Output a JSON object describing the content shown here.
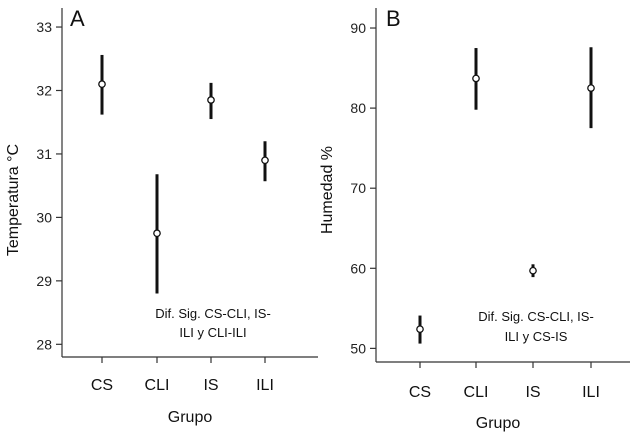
{
  "chart_data": [
    {
      "type": "scatter",
      "panel_label": "A",
      "xlabel": "Grupo",
      "ylabel": "Temperatura °C",
      "categories": [
        "CS",
        "CLI",
        "IS",
        "ILI"
      ],
      "values": [
        32.1,
        29.75,
        31.85,
        30.9
      ],
      "error_low": [
        31.62,
        28.8,
        31.55,
        30.57
      ],
      "error_high": [
        32.56,
        30.68,
        32.12,
        31.2
      ],
      "ylim": [
        27.8,
        33.3
      ],
      "yticks": [
        "28",
        "29",
        "30",
        "31",
        "32",
        "33"
      ],
      "ytick_values": [
        28,
        29,
        30,
        31,
        32,
        33
      ],
      "annotation": [
        "Dif. Sig. CS-CLI, IS-",
        "ILI y CLI-ILI"
      ],
      "grid": false,
      "legend": "none"
    },
    {
      "type": "scatter",
      "panel_label": "B",
      "xlabel": "Grupo",
      "ylabel": "Humedad %",
      "categories": [
        "CS",
        "CLI",
        "IS",
        "ILI"
      ],
      "values": [
        52.4,
        83.7,
        59.7,
        82.5
      ],
      "error_low": [
        50.6,
        79.8,
        58.9,
        77.5
      ],
      "error_high": [
        54.1,
        87.5,
        60.5,
        87.6
      ],
      "ylim": [
        48.3,
        92.5
      ],
      "yticks": [
        "50",
        "60",
        "70",
        "80",
        "90"
      ],
      "ytick_values": [
        50,
        60,
        70,
        80,
        90
      ],
      "annotation": [
        "Dif. Sig. CS-CLI, IS-",
        "ILI y CS-IS"
      ],
      "grid": false,
      "legend": "none"
    }
  ]
}
